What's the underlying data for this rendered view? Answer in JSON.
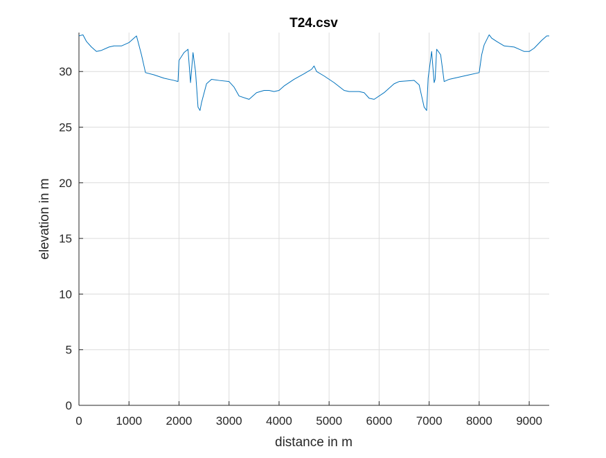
{
  "chart_data": {
    "type": "line",
    "title": "T24.csv",
    "xlabel": "distance in m",
    "ylabel": "elevation in m",
    "xlim": [
      0,
      9400
    ],
    "ylim": [
      0,
      33.5
    ],
    "xticks": [
      0,
      1000,
      2000,
      3000,
      4000,
      5000,
      6000,
      7000,
      8000,
      9000
    ],
    "yticks": [
      0,
      5,
      10,
      15,
      20,
      25,
      30
    ],
    "xtick_labels": [
      "0",
      "1000",
      "2000",
      "3000",
      "4000",
      "5000",
      "6000",
      "7000",
      "8000",
      "9000"
    ],
    "ytick_labels": [
      "0",
      "5",
      "10",
      "15",
      "20",
      "25",
      "30"
    ],
    "grid": true,
    "line_color": "#0072bd",
    "series": [
      {
        "x": [
          0,
          80,
          150,
          250,
          350,
          450,
          600,
          700,
          850,
          1000,
          1100,
          1150,
          1180,
          1250,
          1300,
          1330,
          1500,
          1700,
          1900,
          1980,
          2000,
          2100,
          2180,
          2230,
          2280,
          2330,
          2380,
          2420,
          2450,
          2550,
          2650,
          2800,
          3000,
          3100,
          3200,
          3400,
          3550,
          3700,
          3800,
          3900,
          4000,
          4100,
          4300,
          4500,
          4650,
          4700,
          4750,
          4900,
          5100,
          5300,
          5400,
          5600,
          5700,
          5800,
          5900,
          6100,
          6300,
          6400,
          6700,
          6800,
          6900,
          6950,
          6980,
          7050,
          7100,
          7120,
          7150,
          7200,
          7230,
          7300,
          7400,
          7600,
          7800,
          8000,
          8050,
          8100,
          8200,
          8250,
          8350,
          8500,
          8700,
          8800,
          8900,
          9000,
          9100,
          9250,
          9350,
          9400
        ],
        "y": [
          33.2,
          33.3,
          32.7,
          32.2,
          31.8,
          31.9,
          32.2,
          32.3,
          32.3,
          32.6,
          33.0,
          33.2,
          32.7,
          31.5,
          30.5,
          29.9,
          29.7,
          29.4,
          29.2,
          29.1,
          31.0,
          31.7,
          32.0,
          29.0,
          31.7,
          30.0,
          26.8,
          26.5,
          27.2,
          28.9,
          29.3,
          29.2,
          29.1,
          28.6,
          27.8,
          27.5,
          28.1,
          28.3,
          28.3,
          28.2,
          28.3,
          28.7,
          29.3,
          29.8,
          30.2,
          30.5,
          30.0,
          29.6,
          29.0,
          28.3,
          28.2,
          28.2,
          28.1,
          27.6,
          27.5,
          28.1,
          28.9,
          29.1,
          29.2,
          28.8,
          26.8,
          26.5,
          29.4,
          31.8,
          29.0,
          29.3,
          32.0,
          31.7,
          31.5,
          29.1,
          29.3,
          29.5,
          29.7,
          29.9,
          31.5,
          32.4,
          33.3,
          33.0,
          32.7,
          32.3,
          32.2,
          32.0,
          31.8,
          31.8,
          32.1,
          32.8,
          33.2,
          33.2
        ]
      }
    ]
  }
}
